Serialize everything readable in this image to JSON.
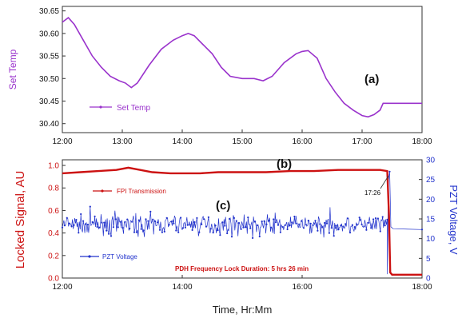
{
  "colors": {
    "set_temp": "#9a33cc",
    "fpi": "#cc1111",
    "pzt": "#2233cc",
    "axis": "#333333"
  },
  "chart_data": [
    {
      "type": "line",
      "panel_label": "(a)",
      "ylabel": "Set Temp",
      "xlabel": "",
      "x_ticks": [
        "12:00",
        "13:00",
        "14:00",
        "15:00",
        "16:00",
        "17:00",
        "18:00"
      ],
      "xlim": [
        12.0,
        18.0
      ],
      "ylim": [
        30.38,
        30.66
      ],
      "y_ticks": [
        "30.40",
        "30.45",
        "30.50",
        "30.55",
        "30.60",
        "30.65"
      ],
      "legend_position": "bottom-left",
      "series": [
        {
          "name": "Set Temp",
          "x": [
            12.0,
            12.1,
            12.2,
            12.35,
            12.5,
            12.65,
            12.8,
            12.95,
            13.05,
            13.15,
            13.25,
            13.45,
            13.65,
            13.85,
            14.0,
            14.1,
            14.2,
            14.35,
            14.5,
            14.65,
            14.8,
            15.0,
            15.2,
            15.35,
            15.5,
            15.7,
            15.9,
            16.0,
            16.1,
            16.25,
            16.4,
            16.55,
            16.7,
            16.85,
            17.0,
            17.1,
            17.2,
            17.3,
            17.35,
            17.5,
            17.8,
            18.0
          ],
          "values": [
            30.625,
            30.635,
            30.62,
            30.585,
            30.55,
            30.525,
            30.505,
            30.495,
            30.49,
            30.48,
            30.49,
            30.53,
            30.565,
            30.585,
            30.595,
            30.6,
            30.595,
            30.575,
            30.555,
            30.525,
            30.505,
            30.5,
            30.5,
            30.495,
            30.505,
            30.535,
            30.555,
            30.56,
            30.562,
            30.545,
            30.5,
            30.47,
            30.445,
            30.43,
            30.418,
            30.415,
            30.42,
            30.43,
            30.445,
            30.445,
            30.445,
            30.445
          ]
        }
      ]
    },
    {
      "type": "line",
      "panel_label": "(b)",
      "panel_label_c": "(c)",
      "ylabel": "Locked Signal, AU",
      "y2label": "PZT Voltage, V",
      "xlabel": "Time, Hr:Mm",
      "x_ticks": [
        "12:00",
        "14:00",
        "16:00",
        "18:00"
      ],
      "xlim": [
        12.0,
        18.0
      ],
      "ylim": [
        0.0,
        1.05
      ],
      "y_ticks": [
        "0.0",
        "0.2",
        "0.4",
        "0.6",
        "0.8",
        "1.0"
      ],
      "y2lim": [
        0,
        30
      ],
      "y2_ticks": [
        "0",
        "5",
        "10",
        "15",
        "20",
        "25",
        "30"
      ],
      "annotation": "17:26",
      "annotation_x": 17.43,
      "duration_text": "PDH Frequency Lock Duration: 5 hrs 26 min",
      "series": [
        {
          "name": "FPI Transmission",
          "axis": "left",
          "x": [
            12.0,
            12.3,
            12.6,
            12.9,
            13.1,
            13.3,
            13.5,
            13.8,
            14.0,
            14.3,
            14.6,
            15.0,
            15.4,
            15.8,
            16.2,
            16.6,
            17.0,
            17.3,
            17.42,
            17.45,
            17.47,
            17.5,
            18.0
          ],
          "values": [
            0.93,
            0.94,
            0.95,
            0.96,
            0.98,
            0.96,
            0.94,
            0.93,
            0.93,
            0.93,
            0.94,
            0.94,
            0.94,
            0.95,
            0.95,
            0.96,
            0.96,
            0.96,
            0.95,
            0.55,
            0.05,
            0.03,
            0.03
          ]
        },
        {
          "name": "PZT Voltage",
          "axis": "right",
          "mean": 13.5,
          "noise_amplitude": 3.5,
          "x_range": [
            12.0,
            17.42
          ],
          "after_x": [
            17.42,
            17.44,
            17.46,
            17.48,
            17.52,
            18.0
          ],
          "after_values": [
            1.0,
            25.0,
            27.0,
            13.0,
            12.5,
            12.3
          ]
        }
      ]
    }
  ]
}
